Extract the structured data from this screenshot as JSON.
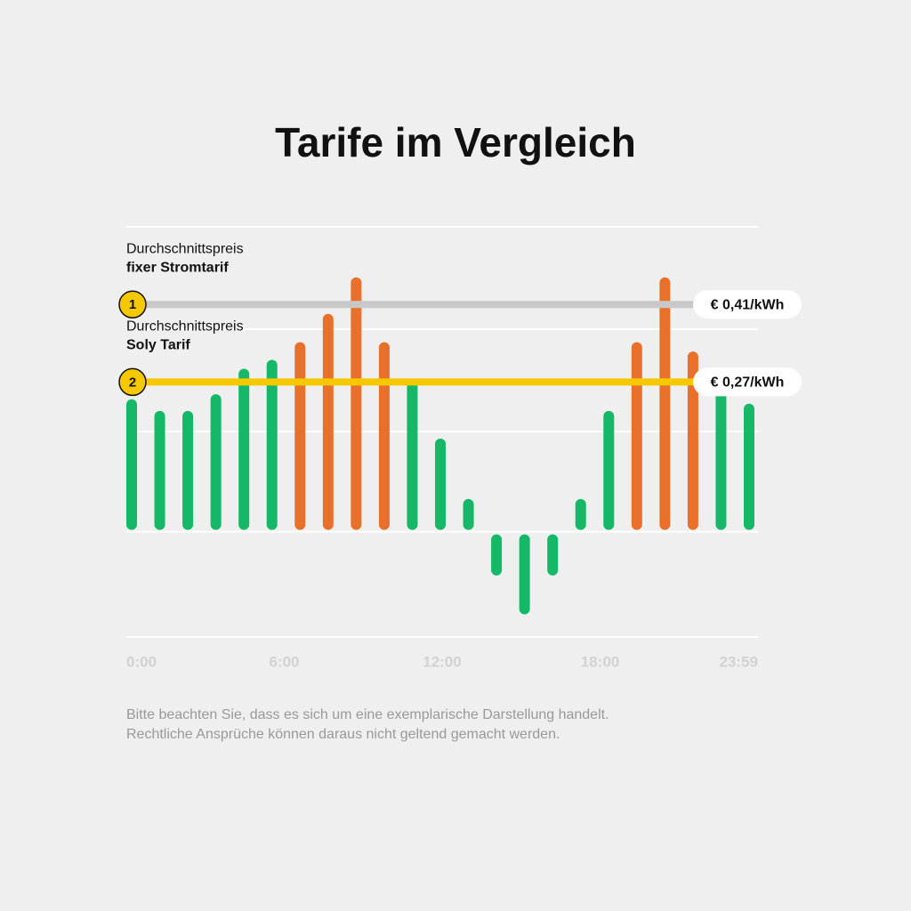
{
  "chart_data": {
    "type": "bar",
    "title": "Tarife im Vergleich",
    "values": [
      0.239,
      0.218,
      0.218,
      0.248,
      0.294,
      0.31,
      0.342,
      0.393,
      0.459,
      0.342,
      0.271,
      0.168,
      0.059,
      -0.079,
      -0.149,
      -0.079,
      0.059,
      0.218,
      0.342,
      0.459,
      0.325,
      0.285,
      0.231
    ],
    "colors": [
      "#14b866",
      "#14b866",
      "#14b866",
      "#14b866",
      "#14b866",
      "#14b866",
      "#e8702a",
      "#e8702a",
      "#e8702a",
      "#e8702a",
      "#14b866",
      "#14b866",
      "#14b866",
      "#14b866",
      "#14b866",
      "#14b866",
      "#14b866",
      "#14b866",
      "#e8702a",
      "#e8702a",
      "#e8702a",
      "#14b866",
      "#14b866"
    ],
    "ylim": [
      -0.19,
      0.55
    ],
    "x_labels": [
      "0:00",
      "6:00",
      "12:00",
      "18:00",
      "23:59"
    ],
    "reference_lines": [
      {
        "marker": "1",
        "label": [
          "Durchschnittspreis",
          "fixer Stromtarif"
        ],
        "value": 0.41,
        "value_label": "€ 0,41/kWh",
        "color": "#c8c8c8"
      },
      {
        "marker": "2",
        "label": [
          "Durchschnittspreis",
          "Soly Tarif"
        ],
        "value": 0.27,
        "value_label": "€ 0,27/kWh",
        "color": "#f5c800"
      }
    ],
    "footnote": [
      "Bitte beachten Sie, dass es sich um eine exemplarische Darstellung handelt.",
      "Rechtliche Ansprüche können daraus nicht geltend gemacht werden."
    ]
  }
}
